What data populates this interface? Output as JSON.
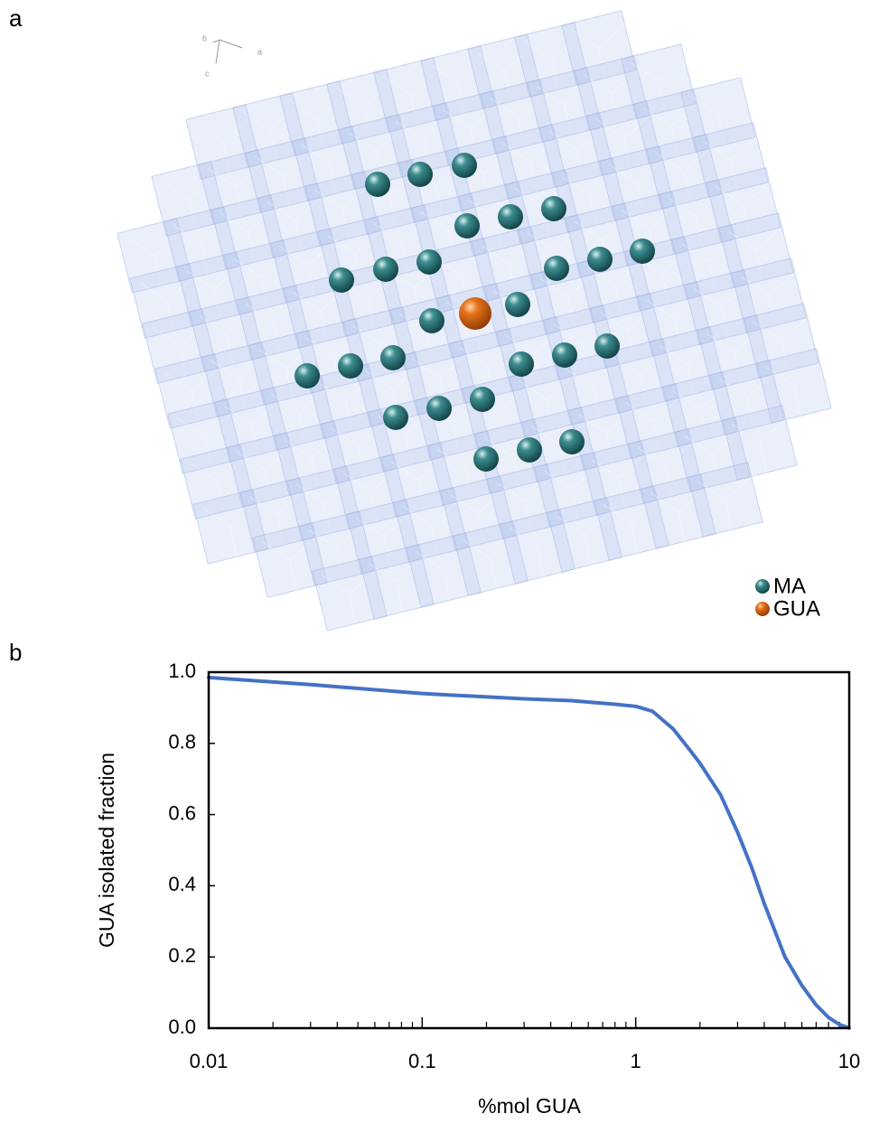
{
  "panel_a": {
    "label": "a",
    "axis_labels": [
      "b",
      "a",
      "c"
    ],
    "legend": [
      "MA",
      "GUA"
    ]
  },
  "chart_data": {
    "type": "line",
    "panel_label": "b",
    "xlabel": "%mol GUA",
    "ylabel": "GUA isolated fraction",
    "x": [
      0.01,
      0.03,
      0.1,
      0.3,
      0.5,
      0.8,
      1.0,
      1.2,
      1.5,
      1.8,
      2.0,
      2.5,
      3.0,
      3.5,
      4.0,
      5.0,
      6.0,
      7.0,
      8.0,
      9.0,
      10.0
    ],
    "values": [
      0.985,
      0.965,
      0.94,
      0.925,
      0.92,
      0.91,
      0.904,
      0.89,
      0.84,
      0.78,
      0.744,
      0.655,
      0.55,
      0.45,
      0.35,
      0.2,
      0.12,
      0.065,
      0.03,
      0.01,
      0.0
    ],
    "color": "#4472c4",
    "xlog": true,
    "xlim": [
      0.01,
      10
    ],
    "ylim": [
      0,
      1
    ],
    "xticks": [
      0.01,
      0.1,
      1,
      10
    ],
    "xminorticks": [
      0.02,
      0.03,
      0.04,
      0.05,
      0.06,
      0.07,
      0.08,
      0.09,
      0.2,
      0.3,
      0.4,
      0.5,
      0.6,
      0.7,
      0.8,
      0.9,
      2,
      3,
      4,
      5,
      6,
      7,
      8,
      9
    ],
    "yticks": [
      {
        "value": 0,
        "label": "0.0"
      },
      0.2,
      0.4,
      0.6,
      0.8,
      {
        "value": 1,
        "label": "1.0"
      }
    ]
  }
}
